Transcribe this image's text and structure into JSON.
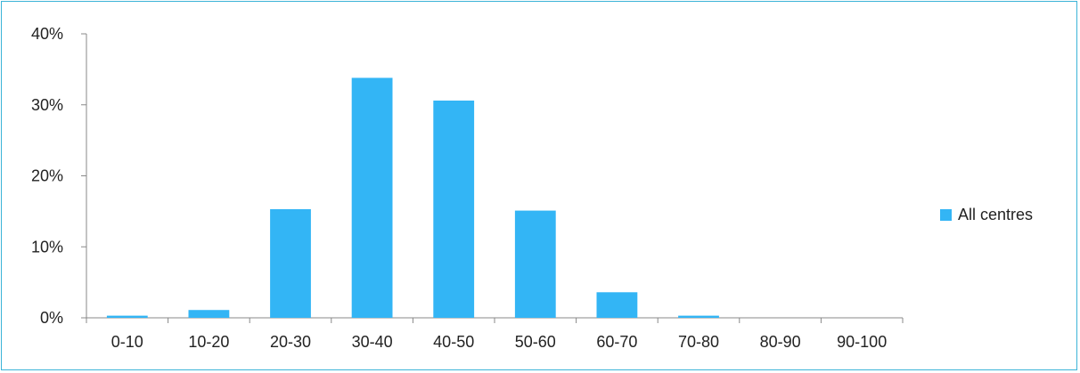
{
  "chart_data": {
    "type": "bar",
    "categories": [
      "0-10",
      "10-20",
      "20-30",
      "30-40",
      "40-50",
      "50-60",
      "60-70",
      "70-80",
      "80-90",
      "90-100"
    ],
    "series": [
      {
        "name": "All centres",
        "values": [
          0.3,
          1.1,
          15.3,
          33.8,
          30.6,
          15.1,
          3.6,
          0.3,
          0.0,
          0.0
        ]
      }
    ],
    "ylim": [
      0,
      40
    ],
    "yticks": [
      0,
      10,
      20,
      30,
      40
    ],
    "ytick_labels": [
      "0%",
      "10%",
      "20%",
      "30%",
      "40%"
    ],
    "grid": false,
    "legend_position": "right",
    "colors": {
      "bar": "#33b5f5",
      "axis": "#888888",
      "frame": "#3bb4d8"
    }
  }
}
